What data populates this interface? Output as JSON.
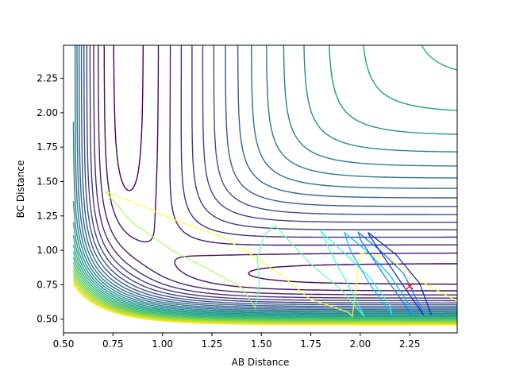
{
  "chart_data": {
    "type": "contour",
    "title": "",
    "xlabel": "AB Distance",
    "ylabel": "BC Distance",
    "xlim": [
      0.5,
      2.49
    ],
    "ylim": [
      0.4,
      2.49
    ],
    "xticks": [
      "0.50",
      "0.75",
      "1.00",
      "1.25",
      "1.50",
      "1.75",
      "2.00",
      "2.25"
    ],
    "yticks": [
      "0.50",
      "0.75",
      "1.00",
      "1.25",
      "1.50",
      "1.75",
      "2.00",
      "2.25"
    ],
    "xtick_values": [
      0.5,
      0.75,
      1.0,
      1.25,
      1.5,
      1.75,
      2.0,
      2.25
    ],
    "ytick_values": [
      0.5,
      0.75,
      1.0,
      1.25,
      1.5,
      1.75,
      2.0,
      2.25
    ],
    "colormap": "viridis",
    "contour_levels_shown": 26,
    "grid": false,
    "legend": "none",
    "trajectory": {
      "description": "dynamics trajectory loop",
      "color_gradient": [
        "#ffff44",
        "#aaff66",
        "#44ffcc",
        "#00ccff",
        "#0055ff",
        "#0000cc"
      ]
    },
    "marker": {
      "x": 2.25,
      "y": 0.74,
      "symbol": "x",
      "color": "#ff0000"
    }
  }
}
